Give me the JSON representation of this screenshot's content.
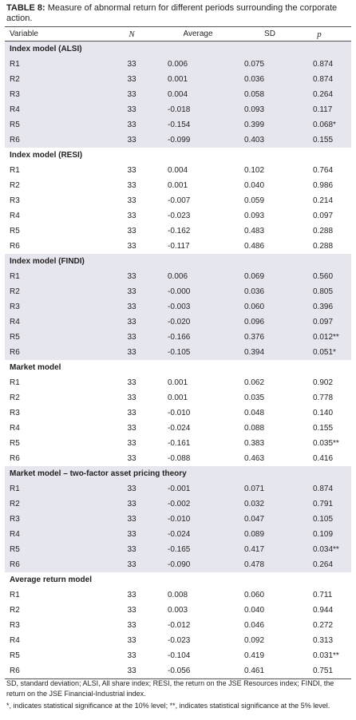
{
  "caption": {
    "label": "TABLE 8:",
    "text": "Measure of abnormal return for different periods surrounding the corporate action."
  },
  "table": {
    "header": [
      "Variable",
      "N",
      "Average",
      "SD",
      "p"
    ],
    "sections": [
      {
        "title": "Index model (ALSI)",
        "rows": [
          [
            "R1",
            "33",
            "0.006",
            "0.075",
            "0.874"
          ],
          [
            "R2",
            "33",
            "0.001",
            "0.036",
            "0.874"
          ],
          [
            "R3",
            "33",
            "0.004",
            "0.058",
            "0.264"
          ],
          [
            "R4",
            "33",
            "-0.018",
            "0.093",
            "0.117"
          ],
          [
            "R5",
            "33",
            "-0.154",
            "0.399",
            "0.068*"
          ],
          [
            "R6",
            "33",
            "-0.099",
            "0.403",
            "0.155"
          ]
        ]
      },
      {
        "title": "Index model (RESI)",
        "rows": [
          [
            "R1",
            "33",
            "0.004",
            "0.102",
            "0.764"
          ],
          [
            "R2",
            "33",
            "0.001",
            "0.040",
            "0.986"
          ],
          [
            "R3",
            "33",
            "-0.007",
            "0.059",
            "0.214"
          ],
          [
            "R4",
            "33",
            "-0.023",
            "0.093",
            "0.097"
          ],
          [
            "R5",
            "33",
            "-0.162",
            "0.483",
            "0.288"
          ],
          [
            "R6",
            "33",
            "-0.117",
            "0.486",
            "0.288"
          ]
        ]
      },
      {
        "title": "Index model (FINDI)",
        "rows": [
          [
            "R1",
            "33",
            "0.006",
            "0.069",
            "0.560"
          ],
          [
            "R2",
            "33",
            "-0.000",
            "0.036",
            "0.805"
          ],
          [
            "R3",
            "33",
            "-0.003",
            "0.060",
            "0.396"
          ],
          [
            "R4",
            "33",
            "-0.020",
            "0.096",
            "0.097"
          ],
          [
            "R5",
            "33",
            "-0.166",
            "0.376",
            "0.012**"
          ],
          [
            "R6",
            "33",
            "-0.105",
            "0.394",
            "0.051*"
          ]
        ]
      },
      {
        "title": "Market model",
        "rows": [
          [
            "R1",
            "33",
            "0.001",
            "0.062",
            "0.902"
          ],
          [
            "R2",
            "33",
            "0.001",
            "0.035",
            "0.778"
          ],
          [
            "R3",
            "33",
            "-0.010",
            "0.048",
            "0.140"
          ],
          [
            "R4",
            "33",
            "-0.024",
            "0.088",
            "0.155"
          ],
          [
            "R5",
            "33",
            "-0.161",
            "0.383",
            "0.035**"
          ],
          [
            "R6",
            "33",
            "-0.088",
            "0.463",
            "0.416"
          ]
        ]
      },
      {
        "title": "Market model – two-factor asset pricing theory",
        "rows": [
          [
            "R1",
            "33",
            "-0.001",
            "0.071",
            "0.874"
          ],
          [
            "R2",
            "33",
            "-0.002",
            "0.032",
            "0.791"
          ],
          [
            "R3",
            "33",
            "-0.010",
            "0.047",
            "0.105"
          ],
          [
            "R4",
            "33",
            "-0.024",
            "0.089",
            "0.109"
          ],
          [
            "R5",
            "33",
            "-0.165",
            "0.417",
            "0.034**"
          ],
          [
            "R6",
            "33",
            "-0.090",
            "0.478",
            "0.264"
          ]
        ]
      },
      {
        "title": "Average return model",
        "rows": [
          [
            "R1",
            "33",
            "0.008",
            "0.060",
            "0.711"
          ],
          [
            "R2",
            "33",
            "0.003",
            "0.040",
            "0.944"
          ],
          [
            "R3",
            "33",
            "-0.012",
            "0.046",
            "0.272"
          ],
          [
            "R4",
            "33",
            "-0.023",
            "0.092",
            "0.313"
          ],
          [
            "R5",
            "33",
            "-0.104",
            "0.419",
            "0.031**"
          ],
          [
            "R6",
            "33",
            "-0.056",
            "0.461",
            "0.751"
          ]
        ]
      }
    ]
  },
  "footnotes": [
    "SD, standard deviation; ALSI, All share index; RESI, the return on the JSE Resources index; FINDI, the return on the JSE Financial-Industrial index.",
    "*, indicates statistical significance at the 10% level; **, indicates statistical significance at the 5% level."
  ]
}
